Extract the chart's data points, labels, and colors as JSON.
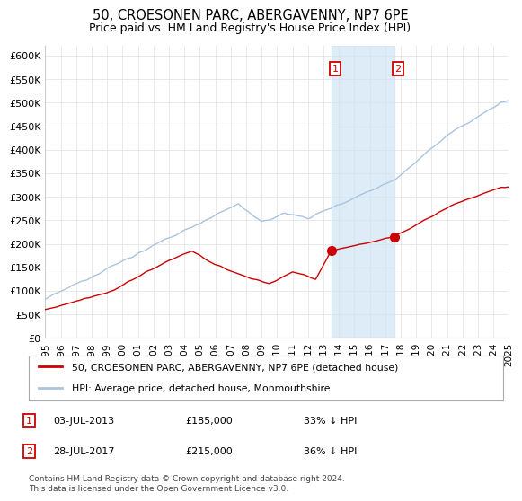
{
  "title": "50, CROESONEN PARC, ABERGAVENNY, NP7 6PE",
  "subtitle": "Price paid vs. HM Land Registry's House Price Index (HPI)",
  "ylim": [
    0,
    620000
  ],
  "ytick_values": [
    0,
    50000,
    100000,
    150000,
    200000,
    250000,
    300000,
    350000,
    400000,
    450000,
    500000,
    550000,
    600000
  ],
  "hpi_color": "#aac4e0",
  "price_color": "#cc0000",
  "purchase1_date": "03-JUL-2013",
  "purchase1_price": 185000,
  "purchase1_label": "33% ↓ HPI",
  "purchase1_year": 2013.5,
  "purchase2_date": "28-JUL-2017",
  "purchase2_price": 215000,
  "purchase2_label": "36% ↓ HPI",
  "purchase2_year": 2017.58,
  "legend1_text": "50, CROESONEN PARC, ABERGAVENNY, NP7 6PE (detached house)",
  "legend2_text": "HPI: Average price, detached house, Monmouthshire",
  "footnote": "Contains HM Land Registry data © Crown copyright and database right 2024.\nThis data is licensed under the Open Government Licence v3.0.",
  "xmin": 1995,
  "xmax": 2025,
  "shading_color": "#d0e4f5",
  "background_color": "#ffffff",
  "grid_color": "#e0e0e0"
}
